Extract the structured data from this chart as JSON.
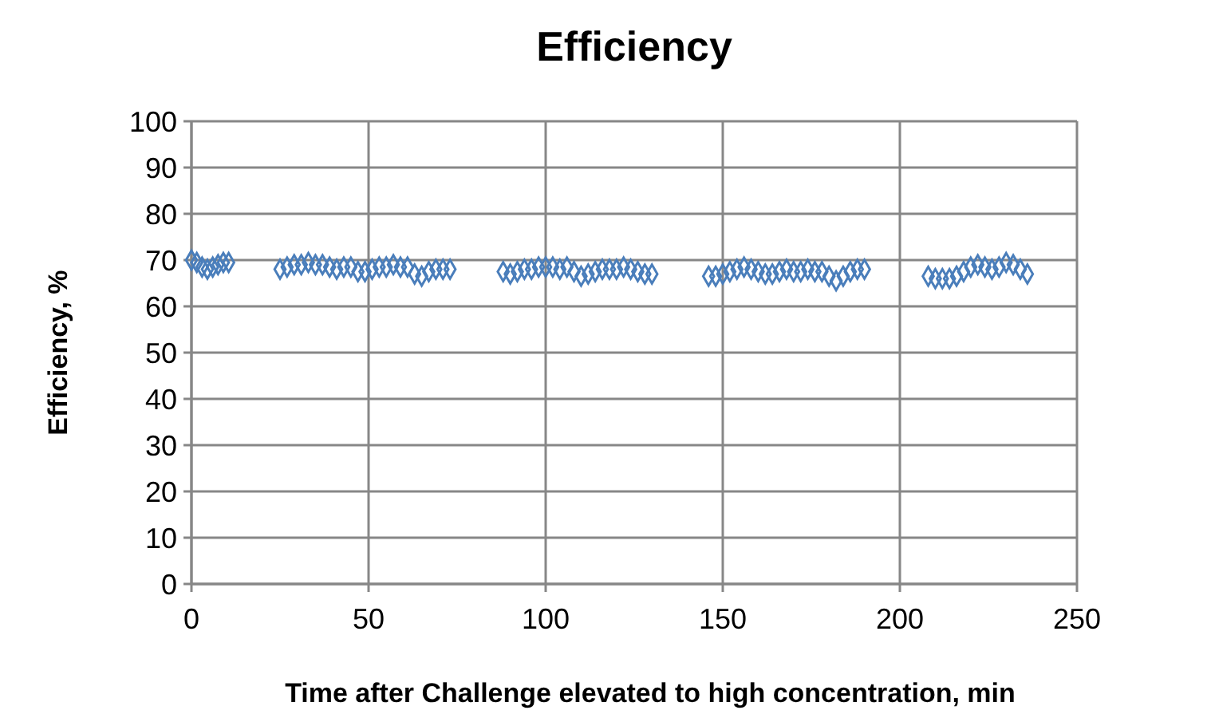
{
  "chart_data": {
    "type": "scatter",
    "title": "Efficiency",
    "xlabel": "Time after Challenge elevated to high concentration, min",
    "ylabel": "Efficiency, %",
    "xlim": [
      0,
      250
    ],
    "xticks": [
      0,
      50,
      100,
      150,
      200,
      250
    ],
    "ylim": [
      0,
      100
    ],
    "yticks": [
      0,
      10,
      20,
      30,
      40,
      50,
      60,
      70,
      80,
      90,
      100
    ],
    "grid": true,
    "marker": "diamond",
    "series": [
      {
        "color": "#4a7ebb",
        "x": [
          0,
          1.5,
          3,
          4.5,
          6,
          7.5,
          9,
          10.5,
          25,
          27,
          29,
          31,
          33,
          35,
          37,
          39,
          41,
          43,
          45,
          47,
          49,
          51,
          53,
          55,
          57,
          59,
          61,
          63,
          65,
          67,
          69,
          71,
          73,
          88,
          90,
          92,
          94,
          96,
          98,
          100,
          102,
          104,
          106,
          108,
          110,
          112,
          114,
          116,
          118,
          120,
          122,
          124,
          126,
          128,
          130,
          146,
          148,
          150,
          152,
          154,
          156,
          158,
          160,
          162,
          164,
          166,
          168,
          170,
          172,
          174,
          176,
          178,
          180,
          182,
          184,
          186,
          188,
          190,
          208,
          210,
          212,
          214,
          216,
          218,
          220,
          222,
          224,
          226,
          228,
          230,
          232,
          234,
          236
        ],
        "values": [
          70,
          69.5,
          68.5,
          68,
          68.5,
          69,
          69.5,
          69.5,
          68,
          68.5,
          69,
          69,
          69.5,
          69,
          69,
          68.5,
          68,
          68.5,
          68.5,
          67.5,
          67.5,
          68,
          68.5,
          68.5,
          69,
          68.5,
          68.5,
          67,
          66.5,
          67.5,
          68,
          68,
          68,
          67.5,
          67,
          67.5,
          68,
          68,
          68.5,
          68.5,
          68.5,
          68,
          68.5,
          67.5,
          66.5,
          67,
          67.5,
          68,
          68,
          68,
          68.5,
          68,
          67.5,
          67,
          67,
          66.5,
          66.5,
          67,
          67.5,
          68,
          68.5,
          68,
          67.5,
          67,
          67,
          67.5,
          68,
          67.5,
          67.5,
          68,
          67.5,
          67.5,
          66.5,
          65.5,
          66.5,
          67.5,
          68,
          68,
          66.5,
          66,
          66,
          66,
          66.5,
          67.5,
          68.5,
          69,
          68.5,
          68,
          68.5,
          69.5,
          69,
          68,
          67
        ]
      }
    ]
  }
}
